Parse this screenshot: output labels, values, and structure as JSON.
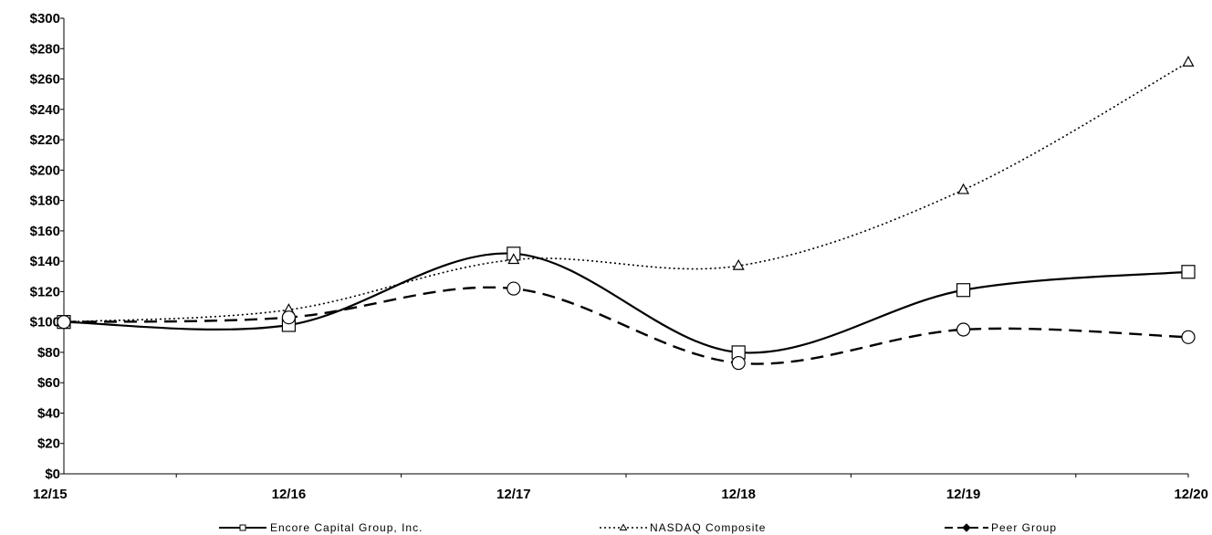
{
  "chart_data": {
    "type": "line",
    "categories": [
      "12/15",
      "12/16",
      "12/17",
      "12/18",
      "12/19",
      "12/20"
    ],
    "y_ticks": [
      "$0",
      "$20",
      "$40",
      "$60",
      "$80",
      "$100",
      "$120",
      "$140",
      "$160",
      "$180",
      "$200",
      "$220",
      "$240",
      "$260",
      "$280",
      "$300"
    ],
    "ylim": [
      0,
      300
    ],
    "grid": false,
    "legend_position": "bottom",
    "title": "",
    "xlabel": "",
    "ylabel": "",
    "series": [
      {
        "name": "Encore Capital Group, Inc.",
        "values": [
          100,
          98,
          145,
          80,
          121,
          133
        ],
        "line_style": "solid",
        "marker": "square",
        "color": "#000000"
      },
      {
        "name": "NASDAQ Composite",
        "values": [
          100,
          108,
          141,
          137,
          187,
          271
        ],
        "line_style": "dotted",
        "marker": "triangle",
        "color": "#000000"
      },
      {
        "name": "Peer Group",
        "values": [
          100,
          103,
          122,
          73,
          95,
          90
        ],
        "line_style": "dashed",
        "marker": "circle",
        "color": "#000000"
      }
    ]
  }
}
